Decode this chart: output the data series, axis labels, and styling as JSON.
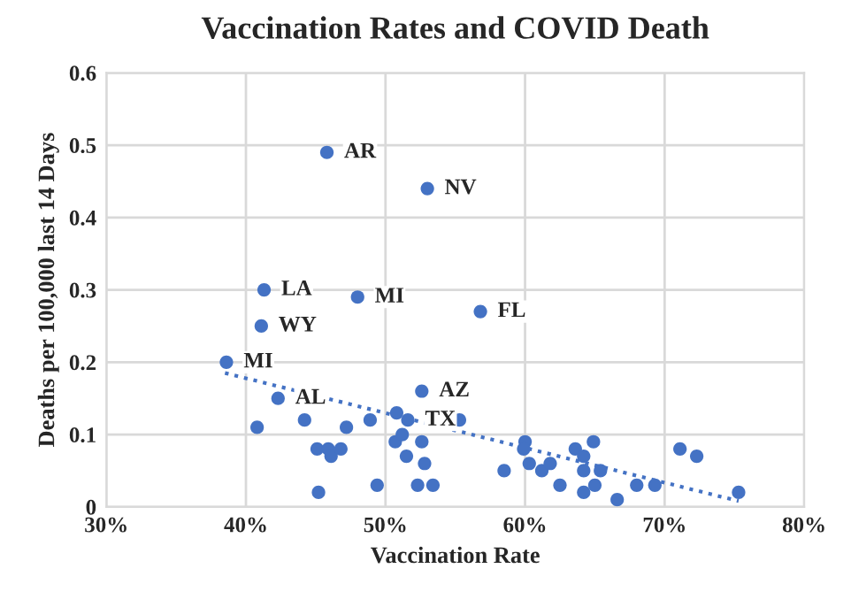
{
  "chart_data": {
    "type": "scatter",
    "title": "Vaccination Rates and COVID Death",
    "xlabel": "Vaccination Rate",
    "ylabel": "Deaths per 100,000 last 14 Days",
    "series": [
      {
        "color": "#4472c4",
        "marker": "circle",
        "x": [
          45.8,
          53.0,
          41.3,
          48.0,
          56.8,
          41.1,
          38.6,
          42.3,
          52.6,
          51.6,
          40.8,
          44.2,
          47.2,
          48.9,
          50.8,
          55.3,
          50.7,
          51.2,
          52.6,
          45.1,
          45.9,
          46.1,
          46.8,
          51.5,
          52.8,
          45.2,
          49.4,
          52.3,
          53.4,
          58.5,
          60.0,
          59.9,
          60.3,
          61.2,
          61.8,
          62.5,
          63.6,
          64.2,
          64.9,
          64.2,
          64.2,
          65.0,
          65.4,
          66.6,
          68.0,
          69.3,
          71.1,
          72.3,
          75.3
        ],
        "values": [
          0.49,
          0.44,
          0.3,
          0.29,
          0.27,
          0.25,
          0.2,
          0.15,
          0.16,
          0.12,
          0.11,
          0.12,
          0.11,
          0.12,
          0.13,
          0.12,
          0.09,
          0.1,
          0.09,
          0.08,
          0.08,
          0.07,
          0.08,
          0.07,
          0.06,
          0.02,
          0.03,
          0.03,
          0.03,
          0.05,
          0.09,
          0.08,
          0.06,
          0.05,
          0.06,
          0.03,
          0.08,
          0.07,
          0.09,
          0.05,
          0.02,
          0.03,
          0.05,
          0.01,
          0.03,
          0.03,
          0.08,
          0.07,
          0.02
        ]
      },
      {
        "type": "line",
        "color": "#4472c4",
        "line_style": "dotted",
        "x": [
          38.5,
          75.3
        ],
        "values": [
          0.185,
          0.008
        ]
      }
    ],
    "annotations": [
      {
        "text": "AR",
        "x": 45.8,
        "y": 0.49
      },
      {
        "text": "NV",
        "x": 53.0,
        "y": 0.44
      },
      {
        "text": "LA",
        "x": 41.3,
        "y": 0.3
      },
      {
        "text": "MI",
        "x": 48.0,
        "y": 0.29
      },
      {
        "text": "FL",
        "x": 56.8,
        "y": 0.27
      },
      {
        "text": "WY",
        "x": 41.1,
        "y": 0.25
      },
      {
        "text": "MI",
        "x": 38.6,
        "y": 0.2
      },
      {
        "text": "AL",
        "x": 42.3,
        "y": 0.15
      },
      {
        "text": "AZ",
        "x": 52.6,
        "y": 0.16
      },
      {
        "text": "TX",
        "x": 51.6,
        "y": 0.12
      }
    ],
    "xlim": [
      30,
      80
    ],
    "xticks": [
      {
        "value": 30,
        "label": "30%"
      },
      {
        "value": 40,
        "label": "40%"
      },
      {
        "value": 50,
        "label": "50%"
      },
      {
        "value": 60,
        "label": "60%"
      },
      {
        "value": 70,
        "label": "70%"
      },
      {
        "value": 80,
        "label": "80%"
      }
    ],
    "ylim": [
      0,
      0.6
    ],
    "yticks": [
      0,
      0.1,
      0.2,
      0.3,
      0.4,
      0.5,
      0.6
    ],
    "grid": true,
    "legend": false
  }
}
